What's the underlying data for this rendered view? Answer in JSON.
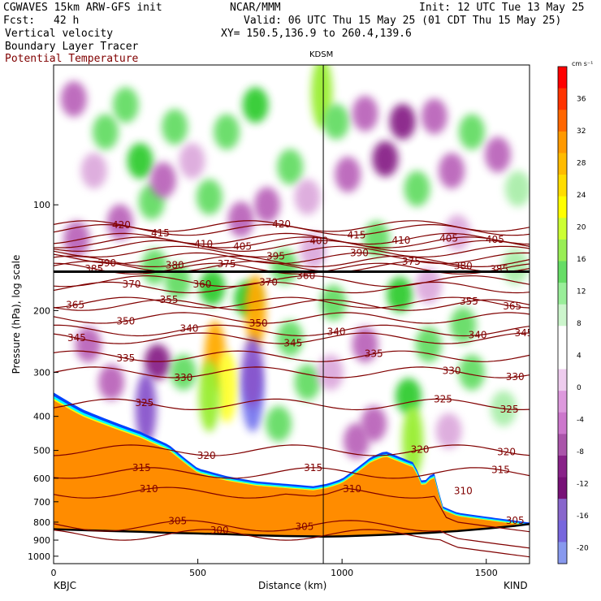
{
  "header": {
    "model": "CGWAVES 15km ARW-GFS init",
    "org": "NCAR/MMM",
    "init": "Init: 12 UTC Tue 13 May 25",
    "fcst_label": "Fcst:",
    "fcst_value": "42 h",
    "valid": "Valid: 06 UTC Thu 15 May 25 (01 CDT Thu 15 May 25)",
    "line1": "Vertical velocity",
    "line2": "Boundary Layer Tracer",
    "line3": "Potential Temperature",
    "xy": "XY= 150.5,136.9 to 260.4,139.6",
    "station_mid": "KDSM",
    "station_left": "KBJC",
    "station_right": "KIND"
  },
  "colors": {
    "theta": "#800000",
    "pbl_orange": "#ff8c00",
    "pbl_yellow": "#ffff00",
    "pbl_cyan": "#00ffff",
    "pbl_blue": "#0044ff",
    "terrain": "#000000"
  },
  "chart_data": {
    "type": "heatmap",
    "xlabel": "Distance (km)",
    "ylabel": "Pressure (hPa), log scale",
    "xlim": [
      0,
      1650
    ],
    "ylim": [
      1050,
      40
    ],
    "x_ticks": [
      0,
      500,
      1000,
      1500
    ],
    "y_ticks": [
      100,
      200,
      300,
      400,
      500,
      600,
      700,
      800,
      900,
      1000
    ],
    "colorbar": {
      "units": "cm s⁻¹",
      "ticks": [
        36,
        32,
        28,
        24,
        20,
        16,
        12,
        8,
        4,
        0,
        -4,
        -8,
        -12,
        -16,
        -20
      ],
      "colors": [
        "#ff0000",
        "#ff3300",
        "#ff6600",
        "#ff9900",
        "#ffbb00",
        "#ffdd00",
        "#ffff00",
        "#ccff33",
        "#99ee55",
        "#66dd66",
        "#99ee99",
        "#ccf5cc",
        "#ffffff",
        "#ffffff",
        "#eeccee",
        "#dd99dd",
        "#cc77cc",
        "#aa55aa",
        "#882288",
        "#771177",
        "#8866cc",
        "#7766dd",
        "#8899ee"
      ]
    },
    "tropopause_pressure": 155,
    "station_km": 935,
    "terrain_profile": {
      "x": [
        0,
        100,
        200,
        300,
        400,
        500,
        600,
        700,
        800,
        900,
        935,
        1000,
        1100,
        1200,
        1300,
        1400,
        1500,
        1600,
        1650
      ],
      "p": [
        838,
        843,
        848,
        852,
        858,
        862,
        866,
        872,
        876,
        878,
        880,
        878,
        872,
        866,
        858,
        848,
        835,
        820,
        810
      ]
    },
    "boundary_layer_top": {
      "x": [
        0,
        50,
        100,
        200,
        300,
        400,
        450,
        500,
        600,
        700,
        800,
        900,
        950,
        1000,
        1050,
        1100,
        1150,
        1200,
        1250,
        1280,
        1300,
        1320,
        1350,
        1400,
        1500,
        1600,
        1650
      ],
      "p": [
        360,
        380,
        400,
        430,
        460,
        500,
        540,
        580,
        610,
        630,
        640,
        650,
        640,
        620,
        580,
        540,
        520,
        540,
        560,
        640,
        610,
        600,
        740,
        770,
        790,
        810,
        820
      ]
    },
    "theta_contours": [
      {
        "theta": 420,
        "p": 115,
        "label_x": [
          235,
          790
        ]
      },
      {
        "theta": 415,
        "p": 118,
        "label_x": [
          370,
          1050
        ]
      },
      {
        "theta": 410,
        "p": 125,
        "label_x": [
          520,
          1205
        ]
      },
      {
        "theta": 405,
        "p": 128,
        "label_x": [
          655,
          1370,
          1530
        ]
      },
      {
        "theta": 400,
        "p": 131,
        "label_x": [
          920
        ]
      },
      {
        "theta": 395,
        "p": 136,
        "label_x": [
          770
        ]
      },
      {
        "theta": 390,
        "p": 142,
        "label_x": [
          185,
          1060
        ]
      },
      {
        "theta": 385,
        "p": 152,
        "label_x": [
          140,
          1545
        ]
      },
      {
        "theta": 380,
        "p": 145,
        "label_x": [
          420,
          1420
        ]
      },
      {
        "theta": 375,
        "p": 150,
        "label_x": [
          600,
          1240
        ]
      },
      {
        "theta": 370,
        "p": 172,
        "label_x": [
          270,
          745
        ]
      },
      {
        "theta": 365,
        "p": 190,
        "label_x": [
          75,
          1590
        ]
      },
      {
        "theta": 360,
        "p": 165,
        "label_x": [
          515,
          875
        ]
      },
      {
        "theta": 355,
        "p": 193,
        "label_x": [
          400,
          1440
        ]
      },
      {
        "theta": 350,
        "p": 210,
        "label_x": [
          250,
          710
        ]
      },
      {
        "theta": 345,
        "p": 240,
        "label_x": [
          80,
          830,
          1630
        ]
      },
      {
        "theta": 340,
        "p": 228,
        "label_x": [
          470,
          980,
          1470
        ]
      },
      {
        "theta": 335,
        "p": 270,
        "label_x": [
          250,
          1110
        ]
      },
      {
        "theta": 330,
        "p": 300,
        "label_x": [
          450,
          1380,
          1600
        ]
      },
      {
        "theta": 325,
        "p": 370,
        "label_x": [
          315,
          1350,
          1580
        ]
      },
      {
        "theta": 320,
        "p": 500,
        "label_x": [
          530,
          1270,
          1570
        ]
      },
      {
        "theta": 315,
        "p": 580,
        "label_x": [
          305,
          900,
          1550
        ]
      },
      {
        "theta": 310,
        "p": 660,
        "label_x": [
          330,
          1035,
          1420
        ]
      },
      {
        "theta": 305,
        "p": 820,
        "label_x": [
          430,
          870,
          1600
        ]
      },
      {
        "theta": 300,
        "p": 870,
        "label_x": [
          575
        ]
      }
    ],
    "velocity_cells": [
      {
        "x": 70,
        "p": 50,
        "w": -10
      },
      {
        "x": 140,
        "p": 80,
        "w": -6
      },
      {
        "x": 250,
        "p": 52,
        "w": 8
      },
      {
        "x": 300,
        "p": 75,
        "w": 10
      },
      {
        "x": 340,
        "p": 98,
        "w": 6
      },
      {
        "x": 380,
        "p": 85,
        "w": -8
      },
      {
        "x": 180,
        "p": 62,
        "w": 6
      },
      {
        "x": 420,
        "p": 60,
        "w": 6
      },
      {
        "x": 480,
        "p": 75,
        "w": -6
      },
      {
        "x": 540,
        "p": 95,
        "w": 8
      },
      {
        "x": 600,
        "p": 62,
        "w": 6
      },
      {
        "x": 650,
        "p": 110,
        "w": -8
      },
      {
        "x": 700,
        "p": 52,
        "w": 10
      },
      {
        "x": 740,
        "p": 100,
        "w": -10
      },
      {
        "x": 820,
        "p": 78,
        "w": 8
      },
      {
        "x": 880,
        "p": 95,
        "w": -6
      },
      {
        "x": 930,
        "p": 48,
        "w": 14
      },
      {
        "x": 980,
        "p": 58,
        "w": 8
      },
      {
        "x": 1020,
        "p": 82,
        "w": -8
      },
      {
        "x": 1080,
        "p": 55,
        "w": -10
      },
      {
        "x": 1150,
        "p": 74,
        "w": -12
      },
      {
        "x": 1210,
        "p": 58,
        "w": -12
      },
      {
        "x": 1260,
        "p": 90,
        "w": 6
      },
      {
        "x": 1320,
        "p": 56,
        "w": -8
      },
      {
        "x": 1380,
        "p": 80,
        "w": -8
      },
      {
        "x": 1450,
        "p": 62,
        "w": 6
      },
      {
        "x": 1540,
        "p": 72,
        "w": -8
      },
      {
        "x": 1610,
        "p": 90,
        "w": 4
      },
      {
        "x": 230,
        "p": 112,
        "w": -10
      },
      {
        "x": 80,
        "p": 125,
        "w": -8
      },
      {
        "x": 350,
        "p": 150,
        "w": 8
      },
      {
        "x": 430,
        "p": 165,
        "w": 8
      },
      {
        "x": 550,
        "p": 172,
        "w": 10
      },
      {
        "x": 670,
        "p": 185,
        "w": 12
      },
      {
        "x": 700,
        "p": 200,
        "w": 24
      },
      {
        "x": 560,
        "p": 270,
        "w": 28
      },
      {
        "x": 600,
        "p": 330,
        "w": 20
      },
      {
        "x": 540,
        "p": 350,
        "w": 14
      },
      {
        "x": 690,
        "p": 350,
        "w": -20
      },
      {
        "x": 690,
        "p": 300,
        "w": -16
      },
      {
        "x": 360,
        "p": 280,
        "w": -12
      },
      {
        "x": 320,
        "p": 380,
        "w": -16
      },
      {
        "x": 200,
        "p": 320,
        "w": -10
      },
      {
        "x": 120,
        "p": 250,
        "w": -8
      },
      {
        "x": 450,
        "p": 300,
        "w": 8
      },
      {
        "x": 820,
        "p": 240,
        "w": 6
      },
      {
        "x": 880,
        "p": 320,
        "w": 8
      },
      {
        "x": 780,
        "p": 420,
        "w": 8
      },
      {
        "x": 960,
        "p": 300,
        "w": -6
      },
      {
        "x": 1080,
        "p": 250,
        "w": -8
      },
      {
        "x": 1110,
        "p": 420,
        "w": -10
      },
      {
        "x": 1050,
        "p": 470,
        "w": -8
      },
      {
        "x": 1230,
        "p": 350,
        "w": 12
      },
      {
        "x": 1245,
        "p": 470,
        "w": 14
      },
      {
        "x": 1300,
        "p": 250,
        "w": 6
      },
      {
        "x": 1370,
        "p": 440,
        "w": -6
      },
      {
        "x": 1450,
        "p": 300,
        "w": 6
      },
      {
        "x": 1560,
        "p": 380,
        "w": 4
      },
      {
        "x": 1200,
        "p": 180,
        "w": 10
      },
      {
        "x": 1300,
        "p": 170,
        "w": -6
      },
      {
        "x": 1420,
        "p": 220,
        "w": 6
      },
      {
        "x": 970,
        "p": 190,
        "w": 6
      },
      {
        "x": 800,
        "p": 150,
        "w": 8
      },
      {
        "x": 900,
        "p": 135,
        "w": -6
      },
      {
        "x": 1120,
        "p": 125,
        "w": 6
      },
      {
        "x": 1400,
        "p": 120,
        "w": -6
      },
      {
        "x": 1600,
        "p": 150,
        "w": 4
      }
    ]
  }
}
